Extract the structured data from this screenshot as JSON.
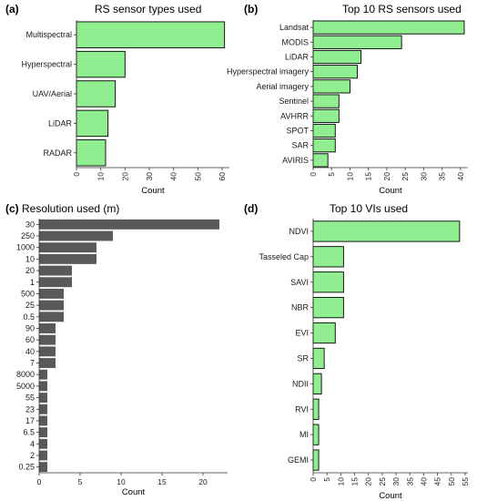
{
  "chart_data": [
    {
      "tag": "(a)",
      "type": "bar",
      "orientation": "horizontal",
      "title": "RS sensor types used",
      "xlabel": "Count",
      "categories": [
        "Multispectral",
        "Hyperspectral",
        "UAV/Aerial",
        "LiDAR",
        "RADAR"
      ],
      "values": [
        61,
        20,
        16,
        13,
        12
      ],
      "xlim": [
        0,
        63
      ],
      "ticks": [
        0,
        10,
        20,
        30,
        40,
        50,
        60
      ],
      "fill": "#90EE90",
      "stroke": "#000000",
      "tick_rotation": "vertical"
    },
    {
      "tag": "(b)",
      "type": "bar",
      "orientation": "horizontal",
      "title": "Top 10 RS sensors used",
      "xlabel": "Count",
      "categories": [
        "Landsat",
        "MODIS",
        "LiDAR",
        "Hyperspectral imagery",
        "Aerial imagery",
        "Sentinel",
        "AVHRR",
        "SPOT",
        "SAR",
        "AVIRIS"
      ],
      "values": [
        41,
        24,
        13,
        12,
        10,
        7,
        7,
        6,
        6,
        4
      ],
      "xlim": [
        0,
        42
      ],
      "ticks": [
        0,
        5,
        10,
        15,
        20,
        25,
        30,
        35,
        40
      ],
      "fill": "#90EE90",
      "stroke": "#000000",
      "tick_rotation": "vertical"
    },
    {
      "tag": "(c)",
      "type": "bar",
      "orientation": "horizontal",
      "title": "Resolution used (m)",
      "xlabel": "Count",
      "categories": [
        "30",
        "250",
        "1000",
        "10",
        "20",
        "1",
        "500",
        "25",
        "0.5",
        "90",
        "60",
        "40",
        "7",
        "8000",
        "5000",
        "55",
        "23",
        "17",
        "6.5",
        "4",
        "2",
        "0.25"
      ],
      "values": [
        22,
        9,
        7,
        7,
        4,
        4,
        3,
        3,
        3,
        2,
        2,
        2,
        2,
        1,
        1,
        1,
        1,
        1,
        1,
        1,
        1,
        1
      ],
      "xlim": [
        0,
        23
      ],
      "ticks": [
        0,
        5,
        10,
        15,
        20
      ],
      "fill": "#595959",
      "stroke": "none",
      "tick_rotation": "horizontal"
    },
    {
      "tag": "(d)",
      "type": "bar",
      "orientation": "horizontal",
      "title": "Top 10 VIs used",
      "xlabel": "Count",
      "categories": [
        "NDVI",
        "Tasseled Cap",
        "SAVI",
        "NBR",
        "EVI",
        "SR",
        "NDII",
        "RVI",
        "MI",
        "GEMI"
      ],
      "values": [
        53,
        11,
        11,
        11,
        8,
        4,
        3,
        2,
        2,
        2
      ],
      "xlim": [
        0,
        56
      ],
      "ticks": [
        0,
        5,
        10,
        15,
        20,
        25,
        30,
        35,
        40,
        45,
        50,
        55
      ],
      "fill": "#90EE90",
      "stroke": "#000000",
      "tick_rotation": "vertical"
    }
  ]
}
